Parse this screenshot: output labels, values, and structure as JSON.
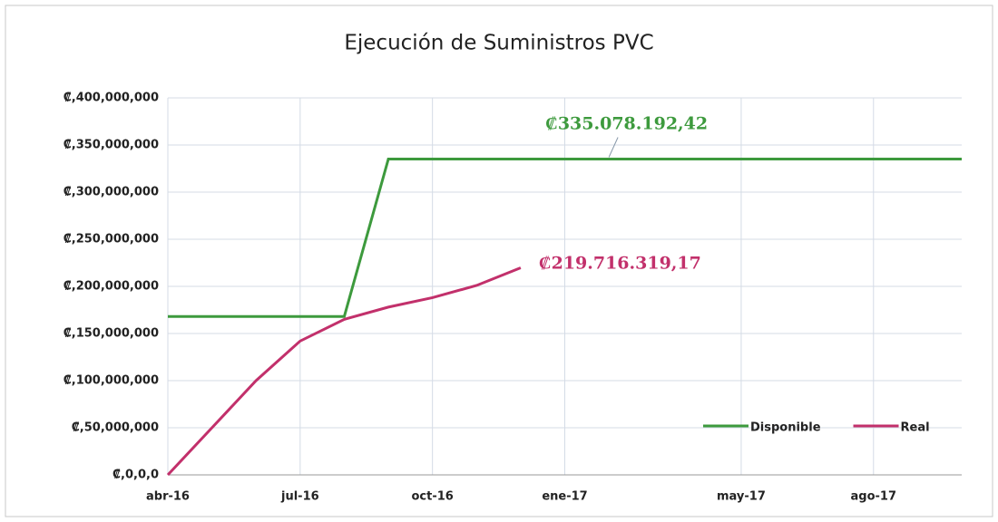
{
  "chart_data": {
    "type": "line",
    "title": "Ejecución de Suministros PVC",
    "xlim": [
      "2016-04",
      "2017-10"
    ],
    "xticks": [
      {
        "value": "2016-04",
        "label": "abr-16"
      },
      {
        "value": "2016-07",
        "label": "jul-16"
      },
      {
        "value": "2016-10",
        "label": "oct-16"
      },
      {
        "value": "2017-01",
        "label": "ene-17"
      },
      {
        "value": "2017-05",
        "label": "may-17"
      },
      {
        "value": "2017-08",
        "label": "ago-17"
      }
    ],
    "ylim": [
      0,
      400000000
    ],
    "yticks": [
      {
        "value": 0,
        "label": "₡,0,0,0"
      },
      {
        "value": 50000000,
        "label": "₡,50,000,000"
      },
      {
        "value": 100000000,
        "label": "₡,100,000,000"
      },
      {
        "value": 150000000,
        "label": "₡,150,000,000"
      },
      {
        "value": 200000000,
        "label": "₡,200,000,000"
      },
      {
        "value": 250000000,
        "label": "₡,250,000,000"
      },
      {
        "value": 300000000,
        "label": "₡,300,000,000"
      },
      {
        "value": 350000000,
        "label": "₡,350,000,000"
      },
      {
        "value": 400000000,
        "label": "₡,400,000,000"
      }
    ],
    "grid": true,
    "legend": "bottom-right",
    "series": [
      {
        "name": "Disponible",
        "color": "#3d9a3d",
        "x": [
          "2016-04",
          "2016-08",
          "2016-09",
          "2017-02",
          "2017-10"
        ],
        "values": [
          168000000,
          168000000,
          335078192.42,
          335078192.42,
          335078192.42
        ],
        "value_labels": [
          null,
          null,
          null,
          "₡335.078.192,42",
          null
        ]
      },
      {
        "name": "Real",
        "color": "#c2306b",
        "x": [
          "2016-04",
          "2016-05",
          "2016-06",
          "2016-07",
          "2016-08",
          "2016-09",
          "2016-10",
          "2016-11",
          "2016-12"
        ],
        "values": [
          0,
          50000000,
          100000000,
          142000000,
          165000000,
          178000000,
          188000000,
          201000000,
          219716319.17
        ],
        "value_labels": [
          null,
          null,
          null,
          null,
          null,
          null,
          null,
          null,
          "₡219.716.319,17"
        ]
      }
    ]
  }
}
